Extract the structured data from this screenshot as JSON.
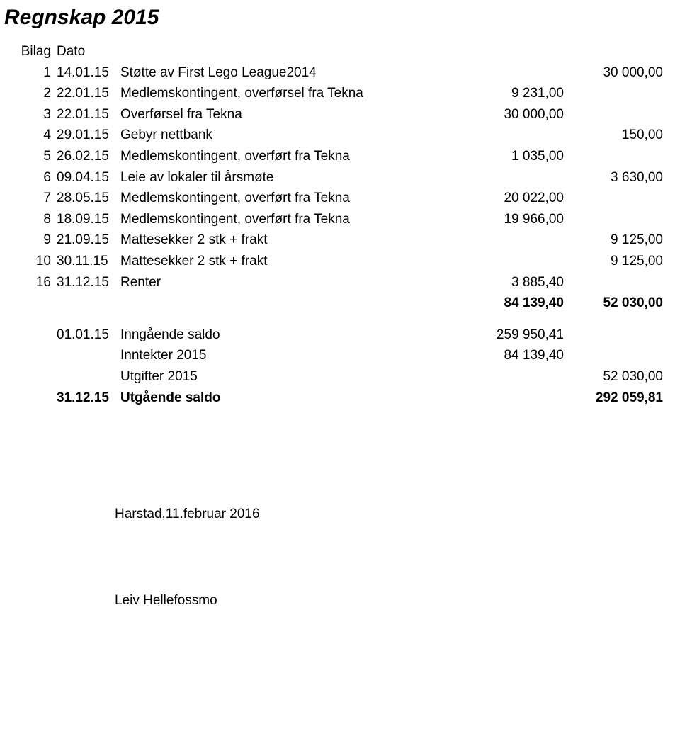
{
  "title": "Regnskap 2015",
  "headers": {
    "bilag": "Bilag",
    "dato": "Dato"
  },
  "rows": [
    {
      "bilag": "1",
      "dato": "14.01.15",
      "desc": "Støtte av First Lego League2014",
      "a1": "",
      "a2": "30 000,00"
    },
    {
      "bilag": "2",
      "dato": "22.01.15",
      "desc": "Medlemskontingent, overførsel fra Tekna",
      "a1": "9 231,00",
      "a2": ""
    },
    {
      "bilag": "3",
      "dato": "22.01.15",
      "desc": "Overførsel fra Tekna",
      "a1": "30 000,00",
      "a2": ""
    },
    {
      "bilag": "4",
      "dato": "29.01.15",
      "desc": "Gebyr nettbank",
      "a1": "",
      "a2": "150,00"
    },
    {
      "bilag": "5",
      "dato": "26.02.15",
      "desc": "Medlemskontingent, overført fra Tekna",
      "a1": "1 035,00",
      "a2": ""
    },
    {
      "bilag": "6",
      "dato": "09.04.15",
      "desc": "Leie av lokaler til årsmøte",
      "a1": "",
      "a2": "3 630,00"
    },
    {
      "bilag": "7",
      "dato": "28.05.15",
      "desc": "Medlemskontingent, overført fra Tekna",
      "a1": "20 022,00",
      "a2": ""
    },
    {
      "bilag": "8",
      "dato": "18.09.15",
      "desc": "Medlemskontingent, overført fra Tekna",
      "a1": "19 966,00",
      "a2": ""
    },
    {
      "bilag": "9",
      "dato": "21.09.15",
      "desc": "Mattesekker 2 stk + frakt",
      "a1": "",
      "a2": "9 125,00"
    },
    {
      "bilag": "10",
      "dato": "30.11.15",
      "desc": "Mattesekker 2 stk + frakt",
      "a1": "",
      "a2": "9 125,00"
    },
    {
      "bilag": "16",
      "dato": "31.12.15",
      "desc": "Renter",
      "a1": "3 885,40",
      "a2": ""
    }
  ],
  "totals": {
    "a1": "84 139,40",
    "a2": "52 030,00"
  },
  "summary": [
    {
      "dato": "01.01.15",
      "desc": "Inngående saldo",
      "a1": "259 950,41",
      "a2": "",
      "bold": false
    },
    {
      "dato": "",
      "desc": "Inntekter 2015",
      "a1": "84 139,40",
      "a2": "",
      "bold": false
    },
    {
      "dato": "",
      "desc": "Utgifter 2015",
      "a1": "",
      "a2": "52 030,00",
      "bold": false
    },
    {
      "dato": "31.12.15",
      "desc": "Utgående saldo",
      "a1": "",
      "a2": "292 059,81",
      "bold": true
    }
  ],
  "footer": {
    "location": "Harstad,11.februar 2016",
    "name": "Leiv Hellefossmo"
  }
}
